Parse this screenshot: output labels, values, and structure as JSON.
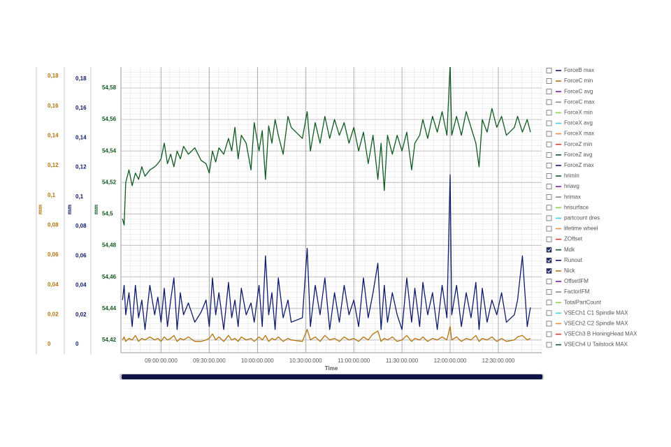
{
  "chart_data": {
    "type": "line",
    "xlabel": "Time",
    "xlim": [
      "08:35",
      "12:57"
    ],
    "xticks": [
      "09:00:00.000",
      "09:30:00.000",
      "10:00:00.000",
      "10:30:00.000",
      "11:00:00.000",
      "11:30:00.000",
      "12:00:00.000",
      "12:30:00.000"
    ],
    "ylabel": "mm",
    "ylim": [
      -0.0056,
      0.1861
    ],
    "yticks": [
      0,
      {
        "value": 0.02,
        "label": "0,02"
      },
      {
        "value": 0.04,
        "label": "0,04"
      },
      {
        "value": 0.06,
        "label": "0,06"
      },
      {
        "value": 0.08,
        "label": "0,08"
      },
      {
        "value": 0.1,
        "label": "0,1"
      },
      {
        "value": 0.12,
        "label": "0,12"
      },
      {
        "value": 0.14,
        "label": "0,14"
      },
      {
        "value": 0.16,
        "label": "0,16"
      },
      {
        "value": 0.18,
        "label": "0,18"
      }
    ],
    "y2label": "mm",
    "y2lim": [
      -0.0057,
      0.188
    ],
    "y2ticks": [
      0,
      {
        "value": 0.02,
        "label": "0,02"
      },
      {
        "value": 0.04,
        "label": "0,04"
      },
      {
        "value": 0.06,
        "label": "0,06"
      },
      {
        "value": 0.08,
        "label": "0,08"
      },
      {
        "value": 0.1,
        "label": "0,1"
      },
      {
        "value": 0.12,
        "label": "0,12"
      },
      {
        "value": 0.14,
        "label": "0,14"
      },
      {
        "value": 0.16,
        "label": "0,16"
      },
      {
        "value": 0.18,
        "label": "0,18"
      }
    ],
    "y3label": "mm",
    "y3lim": [
      54.412,
      54.5933
    ],
    "y3ticks": [
      {
        "value": 54.42,
        "label": "54,42"
      },
      {
        "value": 54.44,
        "label": "54,44"
      },
      {
        "value": 54.46,
        "label": "54,46"
      },
      {
        "value": 54.48,
        "label": "54,48"
      },
      {
        "value": 54.5,
        "label": "54,5"
      },
      {
        "value": 54.52,
        "label": "54,52"
      },
      {
        "value": 54.54,
        "label": "54,54"
      },
      {
        "value": 54.56,
        "label": "54,56"
      },
      {
        "value": 54.58,
        "label": "54,58"
      }
    ],
    "grid": true,
    "x": [
      "08:36",
      "08:37",
      "08:38",
      "08:40",
      "08:42",
      "08:44",
      "08:46",
      "08:48",
      "08:50",
      "08:53",
      "08:56",
      "08:58",
      "09:00",
      "09:02",
      "09:04",
      "09:06",
      "09:08",
      "09:10",
      "09:12",
      "09:14",
      "09:17",
      "09:21",
      "09:25",
      "09:28",
      "09:30",
      "09:32",
      "09:34",
      "09:36",
      "09:39",
      "09:42",
      "09:44",
      "09:46",
      "09:48",
      "09:50",
      "09:53",
      "09:56",
      "09:58",
      "10:01",
      "10:03",
      "10:05",
      "10:07",
      "10:09",
      "10:11",
      "10:13",
      "10:16",
      "10:19",
      "10:21",
      "10:28",
      "10:31",
      "10:33",
      "10:36",
      "10:39",
      "10:42",
      "10:45",
      "10:48",
      "10:51",
      "10:54",
      "10:57",
      "11:00",
      "11:03",
      "11:06",
      "11:09",
      "11:12",
      "11:15",
      "11:17",
      "11:19",
      "11:21",
      "11:24",
      "11:27",
      "11:30",
      "11:33",
      "11:36",
      "11:38",
      "11:41",
      "11:43",
      "11:46",
      "11:49",
      "11:52",
      "11:55",
      "11:58",
      "12:00",
      "12:01",
      "12:04",
      "12:07",
      "12:10",
      "12:13",
      "12:16",
      "12:18",
      "12:20",
      "12:23",
      "12:26",
      "12:29",
      "12:32",
      "12:35",
      "12:40",
      "12:42",
      "12:45",
      "12:48",
      "12:50"
    ],
    "series": [
      {
        "name": "ForceB max",
        "color": "#0d1a6b",
        "visible": false
      },
      {
        "name": "ForceC min",
        "color": "#b5730a",
        "visible": false
      },
      {
        "name": "ForceC avg",
        "color": "#7a1fa2",
        "visible": false
      },
      {
        "name": "ForceC max",
        "color": "#8a8a8a",
        "visible": false
      },
      {
        "name": "ForceX min",
        "color": "#8fd14f",
        "visible": false
      },
      {
        "name": "ForceX avg",
        "color": "#3cd3e6",
        "visible": false
      },
      {
        "name": "ForceX max",
        "color": "#f0883e",
        "visible": false
      },
      {
        "name": "ForceZ min",
        "color": "#e53b2c",
        "visible": false
      },
      {
        "name": "ForceZ avg",
        "color": "#0f5a1e",
        "visible": false
      },
      {
        "name": "ForceZ max",
        "color": "#0d1a6b",
        "visible": false
      },
      {
        "name": "hrimin",
        "color": "#0f5a1e",
        "visible": false
      },
      {
        "name": "hriavg",
        "color": "#7a1fa2",
        "visible": false
      },
      {
        "name": "hrimax",
        "color": "#8a8a8a",
        "visible": false
      },
      {
        "name": "hrisurface",
        "color": "#8fd14f",
        "visible": false
      },
      {
        "name": "partcount dres",
        "color": "#3cd3e6",
        "visible": false
      },
      {
        "name": "lifetime wheel",
        "color": "#f0883e",
        "visible": false
      },
      {
        "name": "ZOffset",
        "color": "#e53b2c",
        "visible": false
      },
      {
        "name": "Mdk",
        "color": "#0f5a1e",
        "visible": true,
        "axis": "y3",
        "values": [
          54.497,
          54.493,
          54.52,
          54.528,
          54.518,
          54.526,
          54.522,
          54.53,
          54.524,
          54.528,
          54.53,
          54.532,
          54.535,
          54.545,
          54.532,
          54.538,
          54.53,
          54.54,
          54.535,
          54.543,
          54.538,
          54.542,
          54.534,
          54.532,
          54.526,
          54.54,
          54.533,
          54.542,
          54.538,
          54.548,
          54.54,
          54.555,
          54.535,
          54.55,
          54.545,
          54.528,
          54.558,
          54.54,
          54.553,
          54.522,
          54.556,
          54.545,
          54.56,
          54.55,
          54.538,
          54.562,
          54.555,
          54.548,
          54.565,
          54.54,
          54.558,
          54.545,
          54.562,
          54.548,
          54.56,
          54.55,
          54.558,
          54.545,
          54.555,
          54.54,
          54.552,
          54.532,
          54.55,
          54.522,
          54.545,
          54.515,
          54.55,
          54.538,
          54.55,
          54.54,
          54.552,
          54.528,
          54.545,
          54.55,
          54.56,
          54.548,
          54.562,
          54.552,
          54.565,
          54.55,
          54.595,
          54.55,
          54.562,
          54.55,
          54.565,
          54.555,
          54.545,
          54.53,
          54.56,
          54.552,
          54.567,
          54.555,
          54.562,
          54.55,
          54.555,
          54.562,
          54.552,
          54.56,
          54.552
        ]
      },
      {
        "name": "Runout",
        "color": "#0d1a6b",
        "visible": true,
        "axis": "y2",
        "values": [
          0.03,
          0.04,
          0.02,
          0.035,
          0.012,
          0.04,
          0.018,
          0.03,
          0.01,
          0.04,
          0.02,
          0.032,
          0.015,
          0.038,
          0.012,
          0.03,
          0.045,
          0.01,
          0.035,
          0.02,
          0.028,
          0.015,
          0.022,
          0.03,
          0.012,
          0.045,
          0.02,
          0.035,
          0.01,
          0.042,
          0.018,
          0.03,
          0.012,
          0.038,
          0.02,
          0.028,
          0.015,
          0.04,
          0.012,
          0.06,
          0.02,
          0.035,
          0.01,
          0.045,
          0.018,
          0.03,
          0.015,
          0.018,
          0.065,
          0.012,
          0.04,
          0.02,
          0.045,
          0.01,
          0.035,
          0.015,
          0.04,
          0.02,
          0.03,
          0.012,
          0.045,
          0.018,
          0.035,
          0.055,
          0.01,
          0.04,
          0.015,
          0.035,
          0.02,
          0.01,
          0.045,
          0.015,
          0.038,
          0.012,
          0.042,
          0.02,
          0.035,
          0.01,
          0.04,
          0.018,
          0.115,
          0.02,
          0.04,
          0.012,
          0.035,
          0.018,
          0.042,
          0.01,
          0.038,
          0.015,
          0.03,
          0.02,
          0.035,
          0.015,
          0.02,
          0.03,
          0.06,
          0.012,
          0.025
        ]
      },
      {
        "name": "Nick",
        "color": "#b5730a",
        "visible": true,
        "axis": "y",
        "values": [
          0.003,
          0.005,
          0.002,
          0.004,
          0.003,
          0.006,
          0.002,
          0.004,
          0.003,
          0.005,
          0.003,
          0.004,
          0.002,
          0.005,
          0.003,
          0.004,
          0.006,
          0.002,
          0.004,
          0.003,
          0.005,
          0.002,
          0.002,
          0.003,
          0.004,
          0.007,
          0.003,
          0.005,
          0.002,
          0.006,
          0.003,
          0.004,
          0.002,
          0.005,
          0.003,
          0.004,
          0.002,
          0.005,
          0.003,
          0.006,
          0.002,
          0.004,
          0.003,
          0.005,
          0.002,
          0.004,
          0.003,
          0.002,
          0.01,
          0.003,
          0.005,
          0.002,
          0.006,
          0.003,
          0.004,
          0.002,
          0.005,
          0.003,
          0.004,
          0.002,
          0.005,
          0.003,
          0.007,
          0.009,
          0.002,
          0.004,
          0.003,
          0.005,
          0.002,
          0.003,
          0.006,
          0.002,
          0.004,
          0.003,
          0.005,
          0.002,
          0.004,
          0.003,
          0.005,
          0.003,
          0.012,
          0.003,
          0.005,
          0.002,
          0.004,
          0.003,
          0.006,
          0.002,
          0.004,
          0.003,
          0.005,
          0.002,
          0.004,
          0.002,
          0.003,
          0.005,
          0.006,
          0.003,
          0.004
        ]
      },
      {
        "name": "OffsetIFM",
        "color": "#7a1fa2",
        "visible": false
      },
      {
        "name": "FactorIFM",
        "color": "#8a8a8a",
        "visible": false
      },
      {
        "name": "TotalPartCount",
        "color": "#8fd14f",
        "visible": false
      },
      {
        "name": "VSECh1 C1 Spindle MAX",
        "color": "#3cd3e6",
        "visible": false
      },
      {
        "name": "VSECh2 C2 Spindle MAX",
        "color": "#f0883e",
        "visible": false
      },
      {
        "name": "VSECh3 B HoningHead MAX",
        "color": "#e53b2c",
        "visible": false
      },
      {
        "name": "VSECh4 U Tailstock MAX",
        "color": "#0f5a1e",
        "visible": false
      }
    ]
  }
}
